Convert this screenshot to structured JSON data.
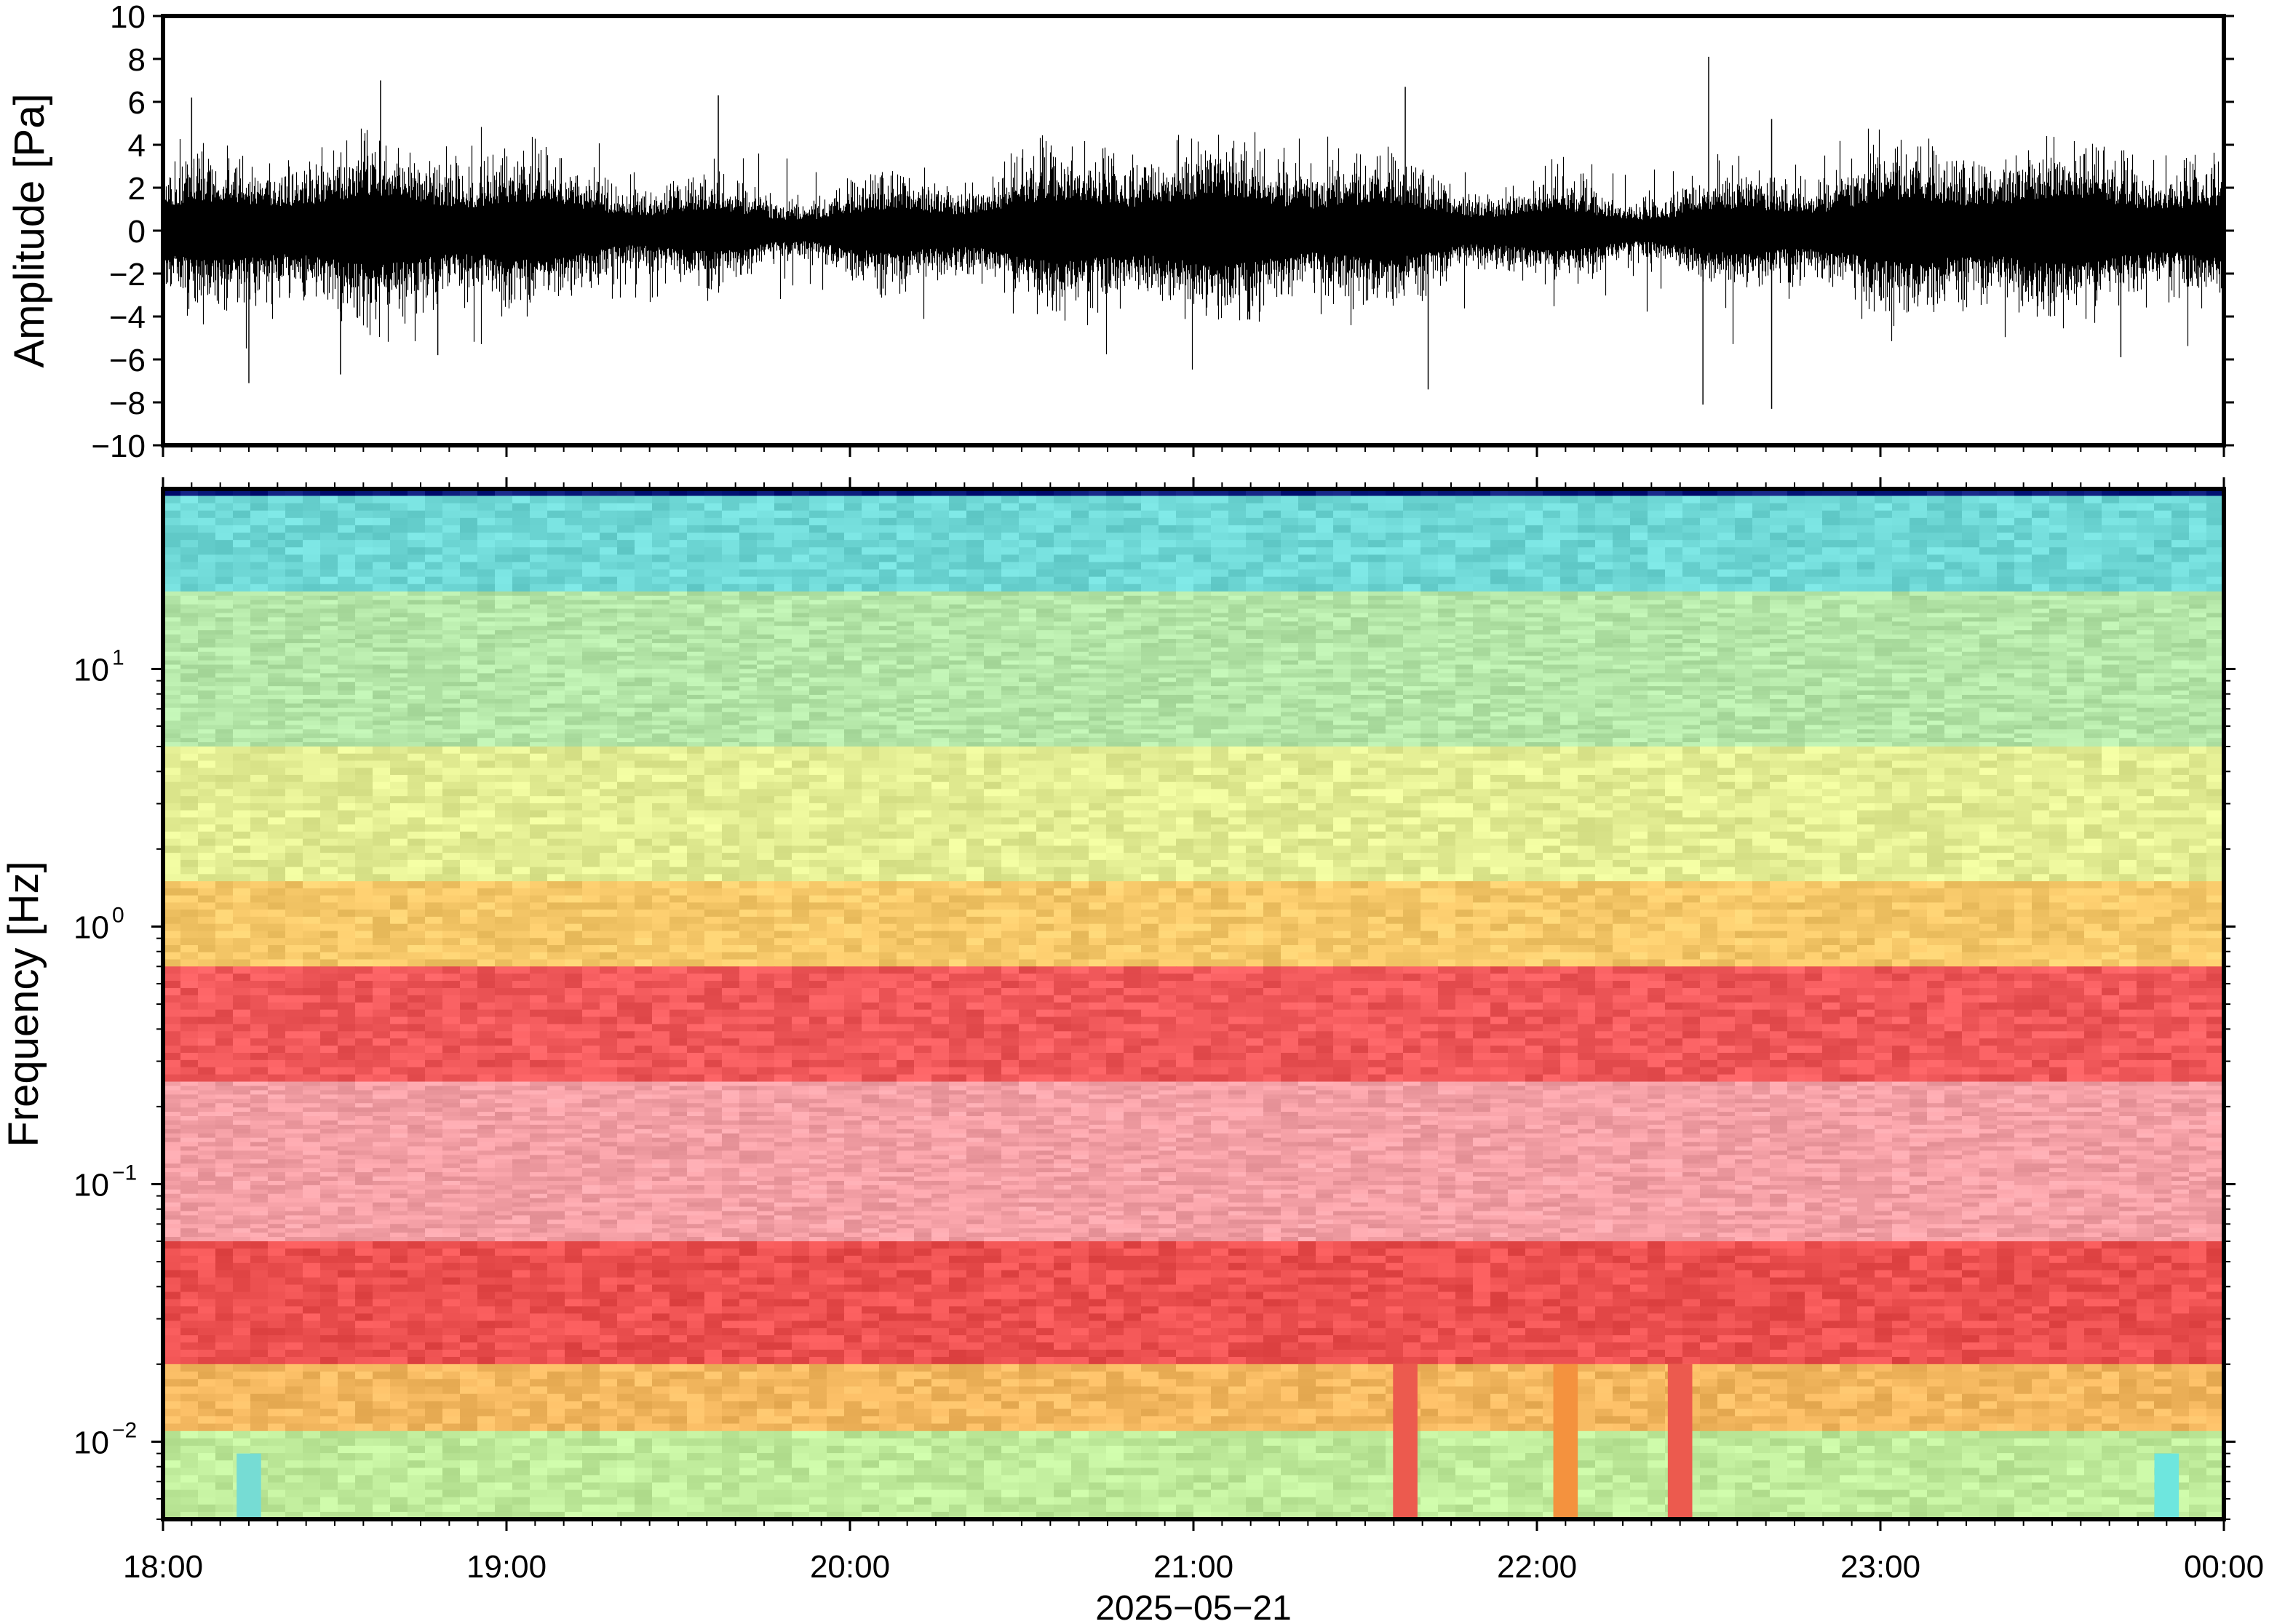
{
  "chart_data": [
    {
      "type": "line",
      "ylabel": "Amplitude [Pa]",
      "ylim": [
        -10,
        10
      ],
      "y_ticks": [
        10,
        8,
        6,
        4,
        2,
        0,
        -2,
        -4,
        -6,
        -8,
        -10
      ],
      "xlim": [
        "18:00",
        "00:00"
      ],
      "grid": false,
      "series": [
        {
          "style": "dense waveform trace",
          "color": "#000000",
          "typical_envelope": [
            -3,
            3
          ],
          "max": 8.1,
          "min": -8.3,
          "notable_peaks": [
            {
              "time": "18:05",
              "value": 6.2
            },
            {
              "time": "18:15",
              "value": -7.1
            },
            {
              "time": "18:31",
              "value": -6.7
            },
            {
              "time": "18:38",
              "value": 7.0
            },
            {
              "time": "18:48",
              "value": -5.8
            },
            {
              "time": "19:37",
              "value": 6.3
            },
            {
              "time": "21:37",
              "value": 6.7
            },
            {
              "time": "21:41",
              "value": -7.4
            },
            {
              "time": "22:30",
              "value": 8.1
            },
            {
              "time": "22:29",
              "value": -8.1
            },
            {
              "time": "22:41",
              "value": 5.2
            },
            {
              "time": "22:41",
              "value": -8.3
            },
            {
              "time": "23:42",
              "value": -5.9
            }
          ]
        }
      ]
    },
    {
      "type": "heatmap",
      "ylabel": "Frequency [Hz]",
      "yscale": "log",
      "ylim": [
        0.005,
        50
      ],
      "y_ticks": [
        {
          "label": "10",
          "exp": "1",
          "value": 10
        },
        {
          "label": "10",
          "exp": "0",
          "value": 1
        },
        {
          "label": "10",
          "exp": "−1",
          "value": 0.1
        },
        {
          "label": "10",
          "exp": "−2",
          "value": 0.01
        }
      ],
      "x_ticks": [
        "18:00",
        "19:00",
        "20:00",
        "21:00",
        "22:00",
        "23:00",
        "00:00"
      ],
      "xlabel": "2025−05−21",
      "colormap": "rainbow (blue low → red high → pink highest)",
      "frequency_bands": [
        {
          "from_hz": 47,
          "to_hz": 50,
          "color": "#0a1a7a"
        },
        {
          "from_hz": 20,
          "to_hz": 47,
          "color": "#6fd8d6"
        },
        {
          "from_hz": 5,
          "to_hz": 20,
          "color": "#b4e6a8"
        },
        {
          "from_hz": 1.5,
          "to_hz": 5,
          "color": "#e4ee94"
        },
        {
          "from_hz": 0.7,
          "to_hz": 1.5,
          "color": "#f7c96a"
        },
        {
          "from_hz": 0.25,
          "to_hz": 0.7,
          "color": "#f0585a"
        },
        {
          "from_hz": 0.06,
          "to_hz": 0.25,
          "color": "#f4a0a6"
        },
        {
          "from_hz": 0.02,
          "to_hz": 0.06,
          "color": "#ec5050"
        },
        {
          "from_hz": 0.011,
          "to_hz": 0.02,
          "color": "#f4b860"
        },
        {
          "from_hz": 0.005,
          "to_hz": 0.011,
          "color": "#c0ec9c"
        }
      ],
      "low_frequency_anomalies": [
        {
          "time": "21:37",
          "hz_range": [
            0.005,
            0.02
          ],
          "color": "#ec5a4e"
        },
        {
          "time": "22:05",
          "hz_range": [
            0.005,
            0.02
          ],
          "color": "#f4923e"
        },
        {
          "time": "22:25",
          "hz_range": [
            0.005,
            0.02
          ],
          "color": "#ec5a4e"
        },
        {
          "time": "23:50",
          "hz_range": [
            0.005,
            0.009
          ],
          "color": "#6ee6de"
        },
        {
          "time": "18:15",
          "hz_range": [
            0.005,
            0.009
          ],
          "color": "#76dcd4"
        }
      ]
    }
  ]
}
